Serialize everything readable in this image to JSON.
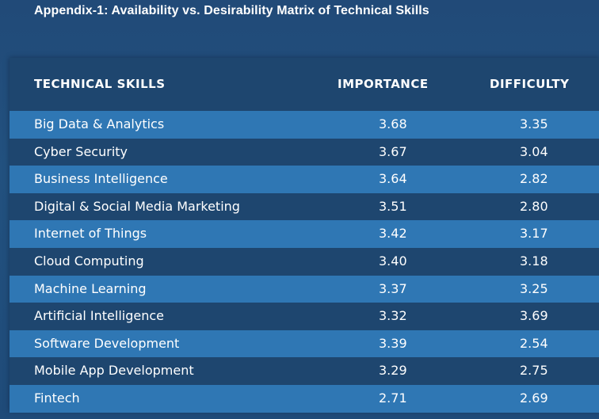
{
  "title": "Appendix-1: Availability vs. Desirability Matrix of Technical Skills",
  "table": {
    "headers": {
      "skill": "TECHNICAL SKILLS",
      "importance": "IMPORTANCE",
      "difficulty": "DIFFICULTY"
    },
    "rows": [
      {
        "skill": "Big Data & Analytics",
        "importance": "3.68",
        "difficulty": "3.35"
      },
      {
        "skill": "Cyber Security",
        "importance": "3.67",
        "difficulty": "3.04"
      },
      {
        "skill": "Business Intelligence",
        "importance": "3.64",
        "difficulty": "2.82"
      },
      {
        "skill": "Digital & Social Media Marketing",
        "importance": "3.51",
        "difficulty": "2.80"
      },
      {
        "skill": "Internet of Things",
        "importance": "3.42",
        "difficulty": "3.17"
      },
      {
        "skill": "Cloud Computing",
        "importance": "3.40",
        "difficulty": "3.18"
      },
      {
        "skill": "Machine Learning",
        "importance": "3.37",
        "difficulty": "3.25"
      },
      {
        "skill": "Artificial Intelligence",
        "importance": "3.32",
        "difficulty": "3.69"
      },
      {
        "skill": "Software Development",
        "importance": "3.39",
        "difficulty": "2.54"
      },
      {
        "skill": "Mobile App Development",
        "importance": "3.29",
        "difficulty": "2.75"
      },
      {
        "skill": "Fintech",
        "importance": "2.71",
        "difficulty": "2.69"
      }
    ]
  },
  "colors": {
    "background": "#214a78",
    "panel": "#1e466f",
    "row_highlight": "#2f77b4",
    "text": "#ffffff"
  }
}
